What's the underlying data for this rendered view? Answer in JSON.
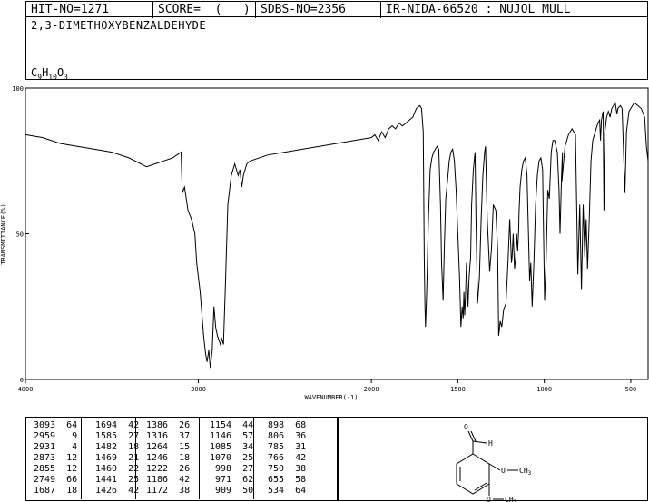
{
  "header": {
    "hit_no": "HIT-NO=1271",
    "score": "SCORE=  (   )",
    "sdbs_no": "SDBS-NO=2356",
    "ir_nida": "IR-NIDA-66520 : NUJOL MULL"
  },
  "compound_name": "2,3-DIMETHOXYBENZALDEHYDE",
  "formula": {
    "c": "C",
    "c_n": "9",
    "h": "H",
    "h_n": "10",
    "o": "O",
    "o_n": "3"
  },
  "chart_data": {
    "type": "line",
    "xlabel": "WAVENUMBER(-1)",
    "ylabel": "TRANSMITTANCE(%)",
    "xlim": [
      4000,
      400
    ],
    "ylim": [
      0,
      100
    ],
    "x_ticks": [
      4000,
      3000,
      2000,
      1500,
      1000,
      500
    ],
    "y_ticks": [
      0,
      50,
      100
    ],
    "series": [
      {
        "points": [
          [
            4000,
            84
          ],
          [
            3900,
            83
          ],
          [
            3800,
            81
          ],
          [
            3700,
            80
          ],
          [
            3600,
            79
          ],
          [
            3500,
            78
          ],
          [
            3400,
            76
          ],
          [
            3300,
            73
          ],
          [
            3250,
            74
          ],
          [
            3200,
            75
          ],
          [
            3150,
            76
          ],
          [
            3100,
            78
          ],
          [
            3093,
            64
          ],
          [
            3080,
            66
          ],
          [
            3060,
            58
          ],
          [
            3040,
            55
          ],
          [
            3020,
            50
          ],
          [
            3010,
            40
          ],
          [
            2990,
            30
          ],
          [
            2970,
            15
          ],
          [
            2959,
            9
          ],
          [
            2950,
            6
          ],
          [
            2940,
            10
          ],
          [
            2931,
            4
          ],
          [
            2920,
            10
          ],
          [
            2910,
            25
          ],
          [
            2900,
            18
          ],
          [
            2890,
            15
          ],
          [
            2873,
            12
          ],
          [
            2865,
            14
          ],
          [
            2855,
            12
          ],
          [
            2845,
            30
          ],
          [
            2830,
            60
          ],
          [
            2810,
            70
          ],
          [
            2790,
            74
          ],
          [
            2780,
            72
          ],
          [
            2770,
            70
          ],
          [
            2760,
            72
          ],
          [
            2749,
            66
          ],
          [
            2740,
            70
          ],
          [
            2720,
            74
          ],
          [
            2700,
            75
          ],
          [
            2600,
            77
          ],
          [
            2500,
            78
          ],
          [
            2400,
            79
          ],
          [
            2300,
            80
          ],
          [
            2200,
            81
          ],
          [
            2100,
            82
          ],
          [
            2000,
            83
          ],
          [
            1980,
            84
          ],
          [
            1960,
            82
          ],
          [
            1940,
            85
          ],
          [
            1920,
            83
          ],
          [
            1900,
            86
          ],
          [
            1880,
            87
          ],
          [
            1860,
            86
          ],
          [
            1840,
            88
          ],
          [
            1820,
            87
          ],
          [
            1800,
            88
          ],
          [
            1780,
            89
          ],
          [
            1760,
            90
          ],
          [
            1740,
            93
          ],
          [
            1720,
            94
          ],
          [
            1710,
            93
          ],
          [
            1700,
            85
          ],
          [
            1694,
            42
          ],
          [
            1690,
            25
          ],
          [
            1687,
            18
          ],
          [
            1680,
            30
          ],
          [
            1670,
            55
          ],
          [
            1660,
            72
          ],
          [
            1650,
            76
          ],
          [
            1640,
            78
          ],
          [
            1620,
            80
          ],
          [
            1610,
            79
          ],
          [
            1600,
            60
          ],
          [
            1594,
            40
          ],
          [
            1585,
            27
          ],
          [
            1578,
            45
          ],
          [
            1570,
            62
          ],
          [
            1560,
            68
          ],
          [
            1550,
            75
          ],
          [
            1540,
            78
          ],
          [
            1530,
            79
          ],
          [
            1520,
            75
          ],
          [
            1510,
            65
          ],
          [
            1500,
            50
          ],
          [
            1490,
            35
          ],
          [
            1482,
            18
          ],
          [
            1475,
            25
          ],
          [
            1469,
            21
          ],
          [
            1465,
            30
          ],
          [
            1460,
            22
          ],
          [
            1455,
            30
          ],
          [
            1450,
            40
          ],
          [
            1441,
            25
          ],
          [
            1435,
            35
          ],
          [
            1426,
            42
          ],
          [
            1420,
            60
          ],
          [
            1410,
            72
          ],
          [
            1400,
            78
          ],
          [
            1395,
            55
          ],
          [
            1386,
            26
          ],
          [
            1375,
            35
          ],
          [
            1365,
            55
          ],
          [
            1355,
            70
          ],
          [
            1345,
            78
          ],
          [
            1340,
            80
          ],
          [
            1330,
            55
          ],
          [
            1316,
            37
          ],
          [
            1305,
            45
          ],
          [
            1295,
            60
          ],
          [
            1280,
            58
          ],
          [
            1270,
            45
          ],
          [
            1264,
            15
          ],
          [
            1255,
            20
          ],
          [
            1246,
            18
          ],
          [
            1235,
            24
          ],
          [
            1222,
            26
          ],
          [
            1210,
            40
          ],
          [
            1200,
            55
          ],
          [
            1190,
            40
          ],
          [
            1186,
            42
          ],
          [
            1180,
            50
          ],
          [
            1172,
            38
          ],
          [
            1165,
            42
          ],
          [
            1160,
            50
          ],
          [
            1154,
            44
          ],
          [
            1148,
            52
          ],
          [
            1146,
            57
          ],
          [
            1140,
            66
          ],
          [
            1130,
            72
          ],
          [
            1120,
            75
          ],
          [
            1110,
            76
          ],
          [
            1100,
            70
          ],
          [
            1085,
            34
          ],
          [
            1078,
            40
          ],
          [
            1070,
            25
          ],
          [
            1060,
            40
          ],
          [
            1050,
            60
          ],
          [
            1040,
            70
          ],
          [
            1030,
            75
          ],
          [
            1020,
            76
          ],
          [
            1010,
            72
          ],
          [
            998,
            27
          ],
          [
            990,
            40
          ],
          [
            980,
            65
          ],
          [
            971,
            62
          ],
          [
            960,
            78
          ],
          [
            950,
            82
          ],
          [
            940,
            82
          ],
          [
            925,
            78
          ],
          [
            915,
            65
          ],
          [
            909,
            50
          ],
          [
            900,
            70
          ],
          [
            895,
            78
          ],
          [
            898,
            68
          ],
          [
            880,
            80
          ],
          [
            860,
            84
          ],
          [
            840,
            86
          ],
          [
            820,
            84
          ],
          [
            806,
            36
          ],
          [
            795,
            60
          ],
          [
            785,
            31
          ],
          [
            775,
            60
          ],
          [
            766,
            42
          ],
          [
            758,
            55
          ],
          [
            750,
            38
          ],
          [
            740,
            55
          ],
          [
            730,
            75
          ],
          [
            720,
            82
          ],
          [
            700,
            86
          ],
          [
            690,
            88
          ],
          [
            680,
            89
          ],
          [
            675,
            82
          ],
          [
            670,
            89
          ],
          [
            660,
            92
          ],
          [
            655,
            58
          ],
          [
            650,
            85
          ],
          [
            640,
            90
          ],
          [
            630,
            92
          ],
          [
            620,
            90
          ],
          [
            610,
            93
          ],
          [
            600,
            94
          ],
          [
            590,
            95
          ],
          [
            580,
            91
          ],
          [
            575,
            93
          ],
          [
            560,
            94
          ],
          [
            550,
            93
          ],
          [
            534,
            64
          ],
          [
            525,
            85
          ],
          [
            510,
            92
          ],
          [
            500,
            93
          ],
          [
            480,
            95
          ],
          [
            460,
            94
          ],
          [
            440,
            93
          ],
          [
            420,
            90
          ],
          [
            410,
            80
          ],
          [
            400,
            75
          ]
        ]
      }
    ]
  },
  "peak_table": {
    "columns": [
      [
        [
          "3093",
          "64"
        ],
        [
          "2959",
          "9"
        ],
        [
          "2931",
          "4"
        ],
        [
          "2873",
          "12"
        ],
        [
          "2855",
          "12"
        ],
        [
          "2749",
          "66"
        ],
        [
          "1687",
          "18"
        ]
      ],
      [
        [
          "1694",
          "42"
        ],
        [
          "1585",
          "27"
        ],
        [
          "1482",
          "18"
        ],
        [
          "1469",
          "21"
        ],
        [
          "1460",
          "22"
        ],
        [
          "1441",
          "25"
        ],
        [
          "1426",
          "42"
        ]
      ],
      [
        [
          "1386",
          "26"
        ],
        [
          "1316",
          "37"
        ],
        [
          "1264",
          "15"
        ],
        [
          "1246",
          "18"
        ],
        [
          "1222",
          "26"
        ],
        [
          "1186",
          "42"
        ],
        [
          "1172",
          "38"
        ]
      ],
      [
        [
          "1154",
          "44"
        ],
        [
          "1146",
          "57"
        ],
        [
          "1085",
          "34"
        ],
        [
          "1070",
          "25"
        ],
        [
          "998",
          "27"
        ],
        [
          "971",
          "62"
        ],
        [
          "909",
          "50"
        ]
      ],
      [
        [
          "898",
          "68"
        ],
        [
          "806",
          "36"
        ],
        [
          "785",
          "31"
        ],
        [
          "766",
          "42"
        ],
        [
          "750",
          "38"
        ],
        [
          "655",
          "58"
        ],
        [
          "534",
          "64"
        ]
      ]
    ]
  },
  "structure_labels": {
    "carbonyl_o": "O",
    "aldehyde_h": "H",
    "och3_1": "O",
    "ch3_1": "CH",
    "ch3_1_sub": "3",
    "och3_2": "O",
    "ch3_2": "CH",
    "ch3_2_sub": "3"
  }
}
